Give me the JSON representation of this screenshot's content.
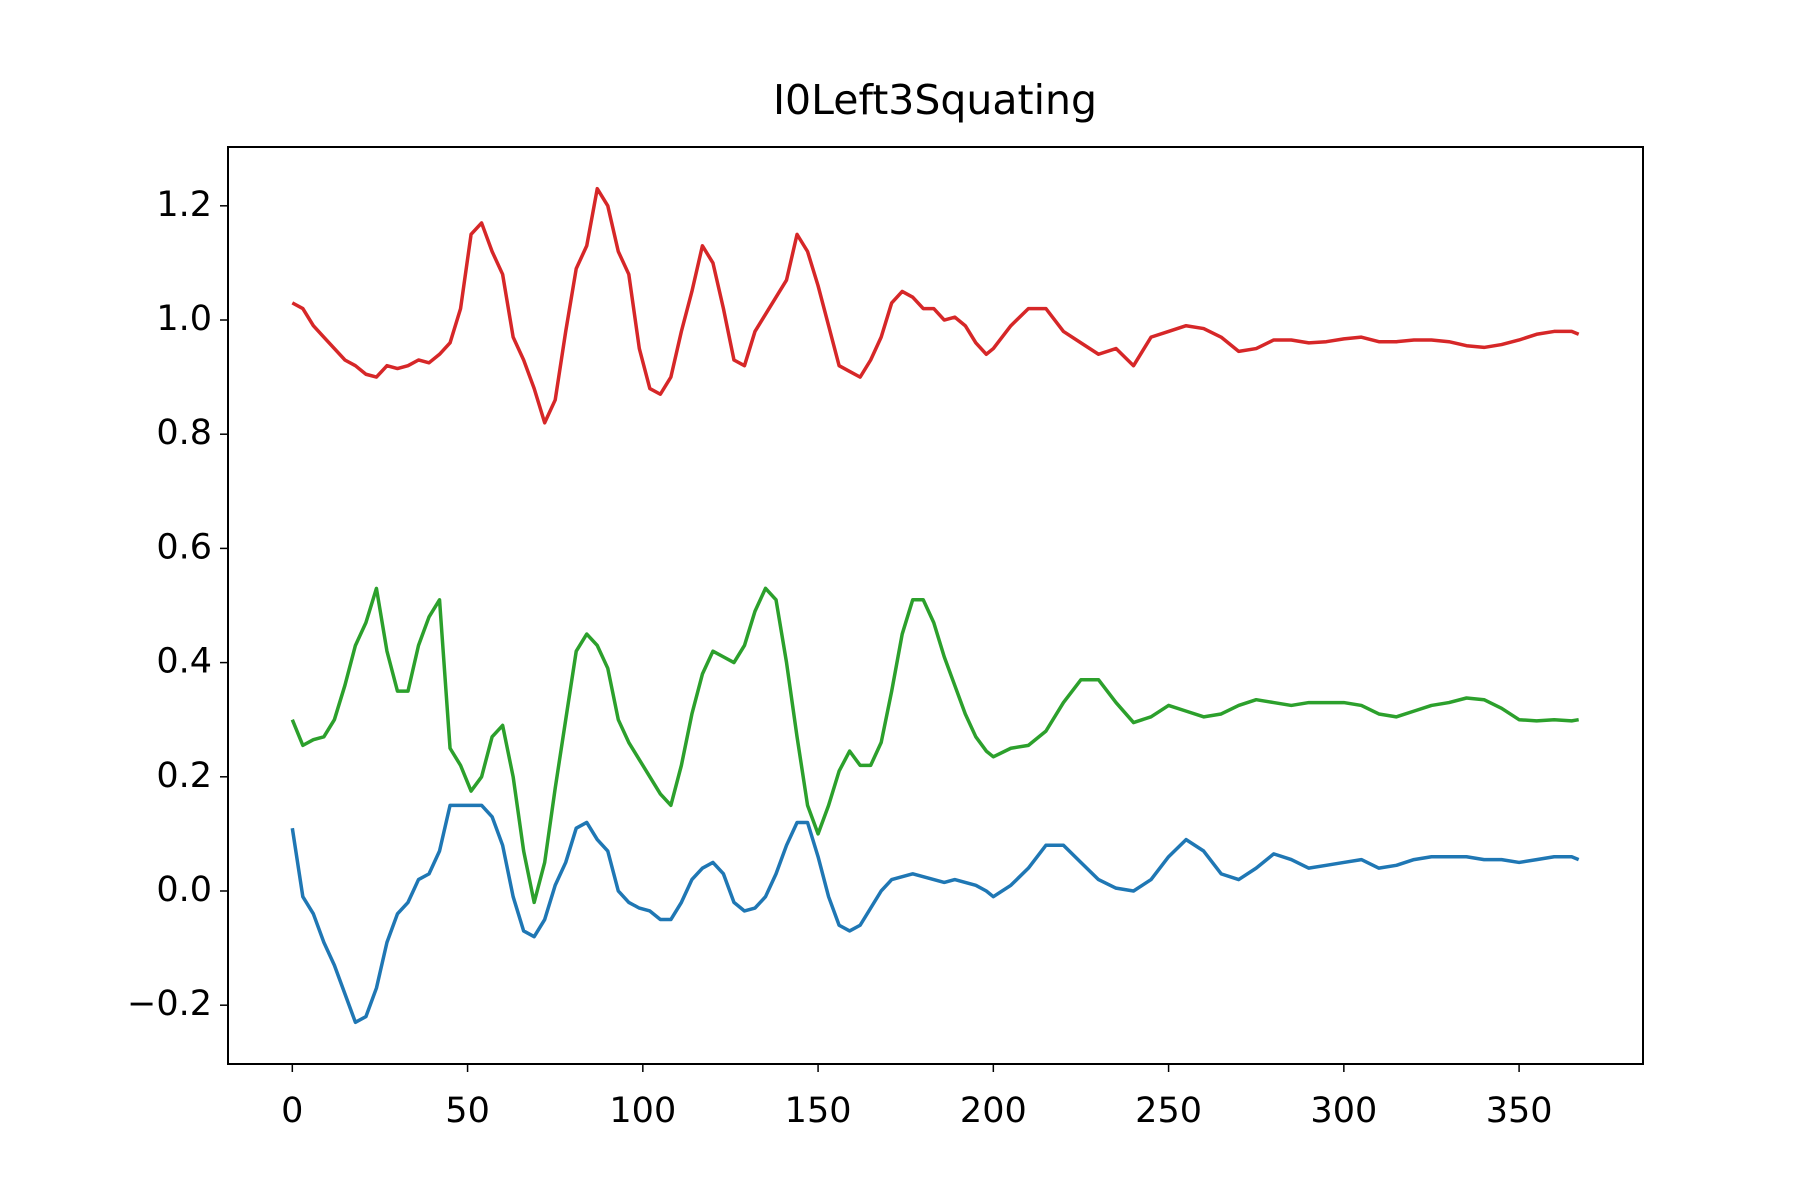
{
  "chart_data": {
    "type": "line",
    "title": "I0Left3Squating",
    "x": [
      0,
      3,
      6,
      9,
      12,
      15,
      18,
      21,
      24,
      27,
      30,
      33,
      36,
      39,
      42,
      45,
      48,
      51,
      54,
      57,
      60,
      63,
      66,
      69,
      72,
      75,
      78,
      81,
      84,
      87,
      90,
      93,
      96,
      99,
      102,
      105,
      108,
      111,
      114,
      117,
      120,
      123,
      126,
      129,
      132,
      135,
      138,
      141,
      144,
      147,
      150,
      153,
      156,
      159,
      162,
      165,
      168,
      171,
      174,
      177,
      180,
      183,
      186,
      189,
      192,
      195,
      198,
      200,
      205,
      210,
      215,
      220,
      225,
      230,
      235,
      240,
      245,
      250,
      255,
      260,
      265,
      270,
      275,
      280,
      285,
      290,
      295,
      300,
      305,
      310,
      315,
      320,
      325,
      330,
      335,
      340,
      345,
      350,
      355,
      360,
      365,
      367
    ],
    "series": [
      {
        "color": "#1f77b4",
        "values": [
          0.11,
          -0.01,
          -0.04,
          -0.09,
          -0.13,
          -0.18,
          -0.23,
          -0.22,
          -0.17,
          -0.09,
          -0.04,
          -0.02,
          0.02,
          0.03,
          0.07,
          0.15,
          0.15,
          0.15,
          0.15,
          0.13,
          0.08,
          -0.01,
          -0.07,
          -0.08,
          -0.05,
          0.01,
          0.05,
          0.11,
          0.12,
          0.09,
          0.07,
          0.0,
          -0.02,
          -0.03,
          -0.035,
          -0.05,
          -0.05,
          -0.02,
          0.02,
          0.04,
          0.05,
          0.03,
          -0.02,
          -0.035,
          -0.03,
          -0.01,
          0.03,
          0.08,
          0.12,
          0.12,
          0.06,
          -0.01,
          -0.06,
          -0.07,
          -0.06,
          -0.03,
          0.0,
          0.02,
          0.025,
          0.03,
          0.025,
          0.02,
          0.015,
          0.02,
          0.015,
          0.01,
          0.0,
          -0.01,
          0.01,
          0.04,
          0.08,
          0.08,
          0.05,
          0.02,
          0.005,
          0.0,
          0.02,
          0.06,
          0.09,
          0.07,
          0.03,
          0.02,
          0.04,
          0.065,
          0.055,
          0.04,
          0.045,
          0.05,
          0.055,
          0.04,
          0.045,
          0.055,
          0.06,
          0.06,
          0.06,
          0.055,
          0.055,
          0.05,
          0.055,
          0.06,
          0.06,
          0.055
        ]
      },
      {
        "color": "#2ca02c",
        "values": [
          0.3,
          0.255,
          0.265,
          0.27,
          0.3,
          0.36,
          0.43,
          0.47,
          0.53,
          0.42,
          0.35,
          0.35,
          0.43,
          0.48,
          0.51,
          0.25,
          0.22,
          0.175,
          0.2,
          0.27,
          0.29,
          0.2,
          0.07,
          -0.02,
          0.05,
          0.18,
          0.3,
          0.42,
          0.45,
          0.43,
          0.39,
          0.3,
          0.26,
          0.23,
          0.2,
          0.17,
          0.15,
          0.22,
          0.31,
          0.38,
          0.42,
          0.41,
          0.4,
          0.43,
          0.49,
          0.53,
          0.51,
          0.4,
          0.27,
          0.15,
          0.1,
          0.15,
          0.21,
          0.245,
          0.22,
          0.22,
          0.26,
          0.35,
          0.45,
          0.51,
          0.51,
          0.47,
          0.41,
          0.36,
          0.31,
          0.27,
          0.245,
          0.235,
          0.25,
          0.255,
          0.28,
          0.33,
          0.37,
          0.37,
          0.33,
          0.295,
          0.305,
          0.325,
          0.315,
          0.305,
          0.31,
          0.325,
          0.335,
          0.33,
          0.325,
          0.33,
          0.33,
          0.33,
          0.325,
          0.31,
          0.305,
          0.315,
          0.325,
          0.33,
          0.338,
          0.335,
          0.32,
          0.3,
          0.298,
          0.3,
          0.298,
          0.3
        ]
      },
      {
        "color": "#d62728",
        "values": [
          1.03,
          1.02,
          0.99,
          0.97,
          0.95,
          0.93,
          0.92,
          0.905,
          0.9,
          0.92,
          0.915,
          0.92,
          0.93,
          0.925,
          0.94,
          0.96,
          1.02,
          1.15,
          1.17,
          1.12,
          1.08,
          0.97,
          0.93,
          0.88,
          0.82,
          0.86,
          0.98,
          1.09,
          1.13,
          1.23,
          1.2,
          1.12,
          1.08,
          0.95,
          0.88,
          0.87,
          0.9,
          0.98,
          1.05,
          1.13,
          1.1,
          1.02,
          0.93,
          0.92,
          0.98,
          1.01,
          1.04,
          1.07,
          1.15,
          1.12,
          1.06,
          0.99,
          0.92,
          0.91,
          0.9,
          0.93,
          0.97,
          1.03,
          1.05,
          1.04,
          1.02,
          1.02,
          1.0,
          1.005,
          0.99,
          0.96,
          0.94,
          0.95,
          0.99,
          1.02,
          1.02,
          0.98,
          0.96,
          0.94,
          0.95,
          0.92,
          0.97,
          0.98,
          0.99,
          0.985,
          0.97,
          0.945,
          0.95,
          0.965,
          0.965,
          0.96,
          0.962,
          0.967,
          0.97,
          0.962,
          0.962,
          0.965,
          0.965,
          0.962,
          0.955,
          0.952,
          0.957,
          0.965,
          0.975,
          0.98,
          0.98,
          0.975
        ]
      }
    ],
    "xlim": [
      -18.35,
      385.35
    ],
    "xticks": [
      0,
      50,
      100,
      150,
      200,
      250,
      300,
      350
    ],
    "ylim": [
      -0.303,
      1.303
    ],
    "yticks": [
      {
        "value": -0.2,
        "label": "−0.2"
      },
      {
        "value": 0,
        "label": "0.0"
      },
      0.2,
      0.4,
      0.6,
      0.8,
      {
        "value": 1,
        "label": "1.0"
      },
      1.2
    ]
  }
}
